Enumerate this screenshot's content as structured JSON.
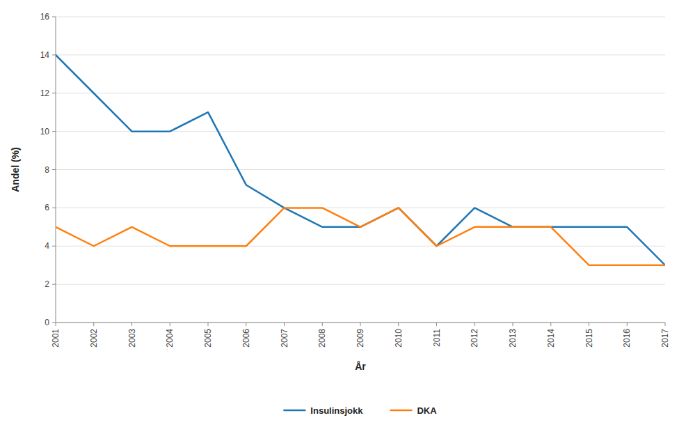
{
  "chart_data": {
    "type": "line",
    "xlabel": "År",
    "ylabel": "Andel (%)",
    "x": [
      2001,
      2002,
      2003,
      2004,
      2005,
      2006,
      2007,
      2008,
      2009,
      2010,
      2011,
      2012,
      2013,
      2014,
      2015,
      2016,
      2017
    ],
    "series": [
      {
        "name": "Insulinsjokk",
        "values": [
          14,
          12,
          10,
          10,
          11,
          7.2,
          6,
          5,
          5,
          6,
          4,
          6,
          5,
          5,
          5,
          5,
          3
        ]
      },
      {
        "name": "DKA",
        "values": [
          5,
          4,
          5,
          4,
          4,
          4,
          6,
          6,
          5,
          6,
          4,
          5,
          5,
          5,
          3,
          3,
          3
        ]
      }
    ],
    "xlim": [
      2001,
      2017
    ],
    "xticks": [
      2001,
      2002,
      2003,
      2004,
      2005,
      2006,
      2007,
      2008,
      2009,
      2010,
      2011,
      2012,
      2013,
      2014,
      2015,
      2016,
      2017
    ],
    "ylim": [
      0,
      16
    ],
    "yticks": [
      0,
      2,
      4,
      6,
      8,
      10,
      12,
      14,
      16
    ],
    "grid": true,
    "legend": "bottom"
  }
}
